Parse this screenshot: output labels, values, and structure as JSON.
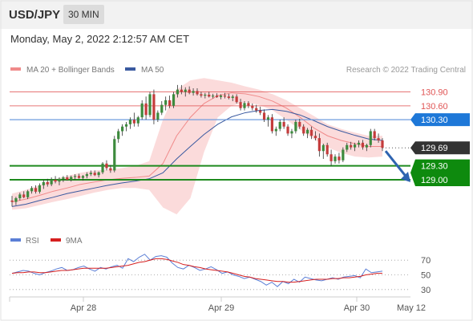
{
  "header": {
    "symbol": "USD/JPY",
    "timeframe": "30 MIN"
  },
  "datetime": "Monday, May 2, 2022 2:12:57 AM CET",
  "watermark": "Research © 2022 Trading Central",
  "colors": {
    "bollinger": "#f08a8a",
    "bollinger_fill": "#fbd7d7",
    "ma50": "#3a5aa0",
    "resistance": "#e05555",
    "pivot": "#6f9cde",
    "support": "#1e8a1e",
    "candle_up": "#3d8a3d",
    "candle_down": "#c43c3c",
    "rsi": "#5b7fd6",
    "rsi_ma": "#d61f1f",
    "arrow": "#2e63b0"
  },
  "chart_data": [
    {
      "type": "candlestick",
      "legend": [
        {
          "label": "MA 20 + Bollinger Bands",
          "color": "#f08a8a"
        },
        {
          "label": "MA 50",
          "color": "#3a5aa0"
        }
      ],
      "ylim": [
        128.2,
        131.5
      ],
      "x_ticks": [
        "Apr 28",
        "Apr 29",
        "Apr 30",
        "May 12"
      ],
      "levels": [
        {
          "label": "130.90",
          "value": 130.9,
          "kind": "resistance"
        },
        {
          "label": "130.60",
          "value": 130.6,
          "kind": "resistance"
        },
        {
          "label": "130.30",
          "value": 130.3,
          "kind": "pivot"
        },
        {
          "label": "129.69",
          "value": 129.69,
          "kind": "last"
        },
        {
          "label": "129.30",
          "value": 129.3,
          "kind": "support"
        },
        {
          "label": "129.00",
          "value": 129.0,
          "kind": "support"
        }
      ],
      "forecast_arrow": {
        "from": 129.69,
        "to": 129.0
      },
      "candles": [
        [
          128.55,
          128.65,
          128.42,
          128.52
        ],
        [
          128.52,
          128.63,
          128.45,
          128.6
        ],
        [
          128.6,
          128.72,
          128.55,
          128.68
        ],
        [
          128.68,
          128.75,
          128.6,
          128.62
        ],
        [
          128.62,
          128.78,
          128.58,
          128.75
        ],
        [
          128.75,
          128.86,
          128.7,
          128.82
        ],
        [
          128.82,
          128.88,
          128.7,
          128.74
        ],
        [
          128.74,
          128.92,
          128.7,
          128.88
        ],
        [
          128.88,
          129.0,
          128.8,
          128.95
        ],
        [
          128.95,
          129.02,
          128.85,
          128.9
        ],
        [
          128.9,
          129.05,
          128.86,
          129.0
        ],
        [
          129.0,
          129.08,
          128.92,
          128.96
        ],
        [
          128.96,
          129.05,
          128.88,
          129.02
        ],
        [
          129.02,
          129.08,
          128.95,
          129.05
        ],
        [
          129.05,
          129.1,
          128.98,
          129.0
        ],
        [
          129.0,
          129.09,
          128.96,
          129.06
        ],
        [
          129.06,
          129.12,
          129.0,
          129.08
        ],
        [
          129.08,
          129.13,
          129.02,
          129.04
        ],
        [
          129.04,
          129.1,
          128.98,
          129.08
        ],
        [
          129.08,
          129.16,
          129.03,
          129.12
        ],
        [
          129.12,
          129.2,
          129.08,
          129.15
        ],
        [
          129.15,
          129.2,
          129.08,
          129.1
        ],
        [
          129.1,
          129.18,
          129.05,
          129.16
        ],
        [
          129.16,
          129.38,
          129.12,
          129.35
        ],
        [
          129.35,
          129.42,
          129.2,
          129.25
        ],
        [
          129.25,
          129.32,
          129.15,
          129.2
        ],
        [
          129.2,
          129.95,
          129.16,
          129.88
        ],
        [
          129.88,
          130.1,
          129.8,
          130.05
        ],
        [
          130.05,
          130.2,
          129.95,
          130.15
        ],
        [
          130.15,
          130.25,
          130.05,
          130.2
        ],
        [
          130.2,
          130.35,
          130.1,
          130.3
        ],
        [
          130.3,
          130.45,
          130.15,
          130.22
        ],
        [
          130.22,
          130.38,
          130.15,
          130.35
        ],
        [
          130.35,
          130.72,
          130.3,
          130.65
        ],
        [
          130.65,
          130.8,
          130.3,
          130.4
        ],
        [
          130.4,
          130.9,
          130.35,
          130.85
        ],
        [
          130.85,
          130.95,
          130.2,
          130.3
        ],
        [
          130.3,
          130.5,
          130.25,
          130.45
        ],
        [
          130.45,
          130.7,
          130.4,
          130.62
        ],
        [
          130.62,
          130.8,
          130.5,
          130.72
        ],
        [
          130.72,
          130.82,
          130.55,
          130.6
        ],
        [
          130.6,
          130.9,
          130.55,
          130.85
        ],
        [
          130.85,
          131.05,
          130.78,
          130.95
        ],
        [
          130.95,
          131.05,
          130.85,
          130.9
        ],
        [
          130.9,
          131.0,
          130.8,
          130.95
        ],
        [
          130.95,
          131.02,
          130.85,
          130.88
        ],
        [
          130.88,
          130.98,
          130.82,
          130.92
        ],
        [
          130.92,
          130.98,
          130.82,
          130.85
        ],
        [
          130.85,
          130.9,
          130.78,
          130.82
        ],
        [
          130.82,
          130.88,
          130.76,
          130.84
        ],
        [
          130.84,
          130.9,
          130.78,
          130.8
        ],
        [
          130.8,
          130.86,
          130.76,
          130.82
        ],
        [
          130.82,
          130.87,
          130.77,
          130.79
        ],
        [
          130.79,
          130.85,
          130.74,
          130.82
        ],
        [
          130.82,
          130.88,
          130.76,
          130.8
        ],
        [
          130.8,
          130.86,
          130.74,
          130.77
        ],
        [
          130.77,
          130.84,
          130.7,
          130.8
        ],
        [
          130.8,
          130.85,
          130.65,
          130.68
        ],
        [
          130.68,
          130.75,
          130.5,
          130.55
        ],
        [
          130.55,
          130.7,
          130.5,
          130.66
        ],
        [
          130.66,
          130.7,
          130.55,
          130.6
        ],
        [
          130.6,
          130.65,
          130.5,
          130.55
        ],
        [
          130.55,
          130.62,
          130.45,
          130.5
        ],
        [
          130.5,
          130.58,
          130.4,
          130.45
        ],
        [
          130.45,
          130.52,
          130.25,
          130.3
        ],
        [
          130.3,
          130.4,
          130.15,
          130.35
        ],
        [
          130.35,
          130.42,
          130.0,
          130.05
        ],
        [
          130.05,
          130.15,
          129.95,
          130.1
        ],
        [
          130.1,
          130.3,
          130.05,
          130.25
        ],
        [
          130.25,
          130.35,
          130.1,
          130.15
        ],
        [
          130.15,
          130.2,
          129.95,
          130.0
        ],
        [
          130.0,
          130.1,
          129.9,
          130.05
        ],
        [
          130.05,
          130.3,
          130.0,
          130.25
        ],
        [
          130.25,
          130.32,
          130.1,
          130.15
        ],
        [
          130.15,
          130.2,
          129.95,
          130.0
        ],
        [
          130.0,
          130.12,
          129.9,
          130.08
        ],
        [
          130.08,
          130.15,
          129.88,
          129.95
        ],
        [
          129.95,
          130.05,
          129.85,
          129.9
        ],
        [
          129.9,
          130.0,
          129.5,
          129.62
        ],
        [
          129.62,
          129.78,
          129.45,
          129.75
        ],
        [
          129.75,
          129.8,
          129.5,
          129.55
        ],
        [
          129.55,
          129.65,
          129.3,
          129.4
        ],
        [
          129.4,
          129.55,
          129.35,
          129.5
        ],
        [
          129.5,
          129.58,
          129.35,
          129.42
        ],
        [
          129.42,
          129.7,
          129.38,
          129.65
        ],
        [
          129.65,
          129.8,
          129.6,
          129.75
        ],
        [
          129.75,
          129.82,
          129.65,
          129.7
        ],
        [
          129.7,
          129.8,
          129.62,
          129.76
        ],
        [
          129.76,
          129.85,
          129.7,
          129.8
        ],
        [
          129.8,
          129.86,
          129.65,
          129.7
        ],
        [
          129.7,
          129.78,
          129.62,
          129.75
        ],
        [
          129.75,
          130.1,
          129.7,
          130.05
        ],
        [
          130.05,
          130.1,
          129.85,
          129.9
        ],
        [
          129.9,
          130.0,
          129.8,
          129.85
        ],
        [
          129.85,
          129.9,
          129.62,
          129.69
        ]
      ],
      "ma20": [
        128.52,
        128.58,
        128.66,
        128.75,
        128.82,
        128.9,
        128.95,
        129.0,
        129.03,
        129.05,
        129.08,
        129.35,
        129.95,
        130.35,
        130.65,
        130.82,
        130.88,
        130.86,
        130.8,
        130.7,
        130.55,
        130.35,
        130.12,
        129.95,
        129.85,
        129.78,
        129.72,
        129.72
      ],
      "bb_upper": [
        128.7,
        128.78,
        128.88,
        129.0,
        129.08,
        129.15,
        129.2,
        129.22,
        129.25,
        129.3,
        129.4,
        130.3,
        130.95,
        131.15,
        131.2,
        131.15,
        131.1,
        131.02,
        130.95,
        130.85,
        130.72,
        130.55,
        130.38,
        130.2,
        130.1,
        130.02,
        129.95,
        129.95
      ],
      "bb_lower": [
        128.35,
        128.38,
        128.45,
        128.52,
        128.58,
        128.65,
        128.72,
        128.78,
        128.82,
        128.82,
        128.78,
        128.4,
        128.25,
        128.6,
        129.6,
        130.35,
        130.6,
        130.68,
        130.62,
        130.5,
        130.3,
        130.08,
        129.88,
        129.7,
        129.58,
        129.5,
        129.48,
        129.5
      ],
      "ma50": [
        128.42,
        128.47,
        128.55,
        128.62,
        128.7,
        128.76,
        128.82,
        128.88,
        128.93,
        128.97,
        129.02,
        129.15,
        129.45,
        129.72,
        129.98,
        130.2,
        130.36,
        130.45,
        130.5,
        130.52,
        130.48,
        130.4,
        130.28,
        130.15,
        130.05,
        129.96,
        129.88,
        129.85
      ]
    },
    {
      "type": "line",
      "legend": [
        {
          "label": "RSI",
          "color": "#5b7fd6"
        },
        {
          "label": "9MA",
          "color": "#d61f1f"
        }
      ],
      "ylim": [
        20,
        80
      ],
      "y_ticks": [
        70,
        50,
        30
      ],
      "rsi": [
        52,
        54,
        56,
        55,
        52,
        50,
        53,
        55,
        58,
        60,
        56,
        57,
        60,
        62,
        58,
        55,
        60,
        58,
        61,
        63,
        59,
        72,
        68,
        74,
        78,
        70,
        75,
        76,
        74,
        66,
        60,
        58,
        63,
        60,
        56,
        58,
        61,
        57,
        52,
        54,
        50,
        48,
        45,
        47,
        44,
        41,
        36,
        40,
        34,
        41,
        38,
        44,
        40,
        47,
        45,
        43,
        42,
        44,
        46,
        44,
        47,
        48,
        49,
        46,
        58,
        53,
        54,
        55
      ],
      "rsi_ma": [
        52,
        53,
        53,
        54,
        54,
        53,
        53,
        54,
        55,
        56,
        56,
        57,
        58,
        59,
        59,
        59,
        59,
        59,
        60,
        61,
        62,
        63,
        65,
        67,
        68,
        70,
        72,
        72,
        71,
        69,
        67,
        64,
        63,
        61,
        60,
        58,
        57,
        56,
        55,
        54,
        52,
        50,
        48,
        47,
        45,
        44,
        43,
        42,
        41,
        41,
        40,
        40,
        41,
        42,
        43,
        44,
        44,
        44,
        45,
        45,
        46,
        46,
        47,
        48,
        50,
        51,
        52,
        52
      ]
    }
  ]
}
